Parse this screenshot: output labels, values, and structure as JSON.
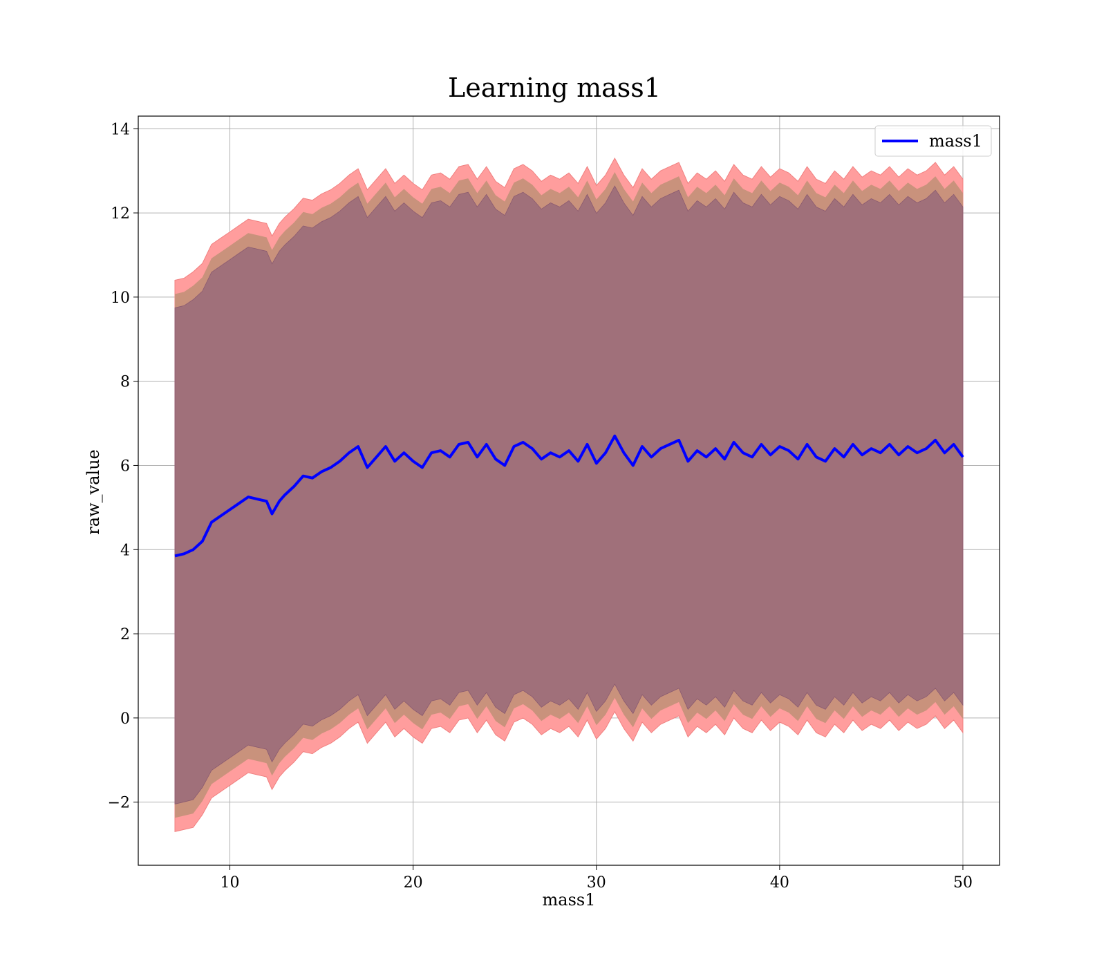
{
  "chart_data": {
    "type": "line",
    "title": "Learning mass1",
    "xlabel": "mass1",
    "ylabel": "raw_value",
    "xlim": [
      5,
      52
    ],
    "ylim": [
      -3.5,
      14.3
    ],
    "xticks": [
      10,
      20,
      30,
      40,
      50
    ],
    "yticks": [
      -2,
      0,
      2,
      4,
      6,
      8,
      10,
      12,
      14
    ],
    "ytick_labels": [
      "−2",
      "0",
      "2",
      "4",
      "6",
      "8",
      "10",
      "12",
      "14"
    ],
    "grid": true,
    "legend": {
      "position": "top-right",
      "entries": [
        "mass1"
      ]
    },
    "colors": {
      "line": "#0000ff",
      "band_outer": "#ff9d9d",
      "band_mid": "#c9927c",
      "band_inner": "#a0707a",
      "grid": "#b0b0b0"
    },
    "series": [
      {
        "name": "mass1",
        "x": [
          7.0,
          7.5,
          8.0,
          8.5,
          9.0,
          9.5,
          10.0,
          10.5,
          11.0,
          11.5,
          12.0,
          12.3,
          12.7,
          13.0,
          13.5,
          14.0,
          14.5,
          15.0,
          15.5,
          16.0,
          16.5,
          17.0,
          17.5,
          18.0,
          18.5,
          19.0,
          19.5,
          20.0,
          20.5,
          21.0,
          21.5,
          22.0,
          22.5,
          23.0,
          23.5,
          24.0,
          24.5,
          25.0,
          25.5,
          26.0,
          26.5,
          27.0,
          27.5,
          28.0,
          28.5,
          29.0,
          29.5,
          30.0,
          30.5,
          31.0,
          31.5,
          32.0,
          32.5,
          33.0,
          33.5,
          34.0,
          34.5,
          35.0,
          35.5,
          36.0,
          36.5,
          37.0,
          37.5,
          38.0,
          38.5,
          39.0,
          39.5,
          40.0,
          40.5,
          41.0,
          41.5,
          42.0,
          42.5,
          43.0,
          43.5,
          44.0,
          44.5,
          45.0,
          45.5,
          46.0,
          46.5,
          47.0,
          47.5,
          48.0,
          48.5,
          49.0,
          49.5,
          50.0
        ],
        "mean": [
          3.85,
          3.9,
          4.0,
          4.2,
          4.65,
          4.8,
          4.95,
          5.1,
          5.25,
          5.2,
          5.15,
          4.85,
          5.15,
          5.3,
          5.5,
          5.75,
          5.7,
          5.85,
          5.95,
          6.1,
          6.3,
          6.45,
          5.95,
          6.2,
          6.45,
          6.1,
          6.3,
          6.1,
          5.95,
          6.3,
          6.35,
          6.2,
          6.5,
          6.55,
          6.2,
          6.5,
          6.15,
          6.0,
          6.45,
          6.55,
          6.4,
          6.15,
          6.3,
          6.2,
          6.35,
          6.1,
          6.5,
          6.05,
          6.3,
          6.7,
          6.3,
          6.0,
          6.45,
          6.2,
          6.4,
          6.5,
          6.6,
          6.1,
          6.35,
          6.2,
          6.4,
          6.15,
          6.55,
          6.3,
          6.2,
          6.5,
          6.25,
          6.45,
          6.35,
          6.15,
          6.5,
          6.2,
          6.1,
          6.4,
          6.2,
          6.5,
          6.25,
          6.4,
          6.3,
          6.5,
          6.25,
          6.45,
          6.3,
          6.4,
          6.6,
          6.3,
          6.5,
          6.2
        ],
        "upper": [
          10.4,
          10.45,
          10.6,
          10.8,
          11.25,
          11.4,
          11.55,
          11.7,
          11.85,
          11.8,
          11.75,
          11.45,
          11.75,
          11.9,
          12.1,
          12.35,
          12.3,
          12.45,
          12.55,
          12.7,
          12.9,
          13.05,
          12.55,
          12.8,
          13.05,
          12.7,
          12.9,
          12.7,
          12.55,
          12.9,
          12.95,
          12.8,
          13.1,
          13.15,
          12.8,
          13.1,
          12.75,
          12.6,
          13.05,
          13.15,
          13.0,
          12.75,
          12.9,
          12.8,
          12.95,
          12.7,
          13.1,
          12.65,
          12.9,
          13.3,
          12.9,
          12.6,
          13.05,
          12.8,
          13.0,
          13.1,
          13.2,
          12.7,
          12.95,
          12.8,
          13.0,
          12.75,
          13.15,
          12.9,
          12.8,
          13.1,
          12.85,
          13.05,
          12.95,
          12.75,
          13.1,
          12.8,
          12.7,
          13.0,
          12.8,
          13.1,
          12.85,
          13.0,
          12.9,
          13.1,
          12.85,
          13.05,
          12.9,
          13.0,
          13.2,
          12.9,
          13.1,
          12.8
        ],
        "lower": [
          -2.7,
          -2.65,
          -2.6,
          -2.3,
          -1.9,
          -1.75,
          -1.6,
          -1.45,
          -1.3,
          -1.35,
          -1.4,
          -1.7,
          -1.4,
          -1.25,
          -1.05,
          -0.8,
          -0.85,
          -0.7,
          -0.6,
          -0.45,
          -0.25,
          -0.1,
          -0.6,
          -0.35,
          -0.1,
          -0.45,
          -0.25,
          -0.45,
          -0.6,
          -0.25,
          -0.2,
          -0.35,
          -0.05,
          0.0,
          -0.35,
          -0.05,
          -0.4,
          -0.55,
          -0.1,
          0.0,
          -0.15,
          -0.4,
          -0.25,
          -0.35,
          -0.2,
          -0.45,
          -0.05,
          -0.5,
          -0.25,
          0.15,
          -0.25,
          -0.55,
          -0.1,
          -0.35,
          -0.15,
          -0.05,
          0.05,
          -0.45,
          -0.2,
          -0.35,
          -0.15,
          -0.4,
          0.0,
          -0.25,
          -0.35,
          -0.05,
          -0.3,
          -0.1,
          -0.2,
          -0.4,
          -0.05,
          -0.35,
          -0.45,
          -0.15,
          -0.35,
          -0.05,
          -0.3,
          -0.15,
          -0.25,
          -0.05,
          -0.3,
          -0.1,
          -0.25,
          -0.15,
          0.05,
          -0.25,
          -0.05,
          -0.35
        ]
      }
    ]
  }
}
